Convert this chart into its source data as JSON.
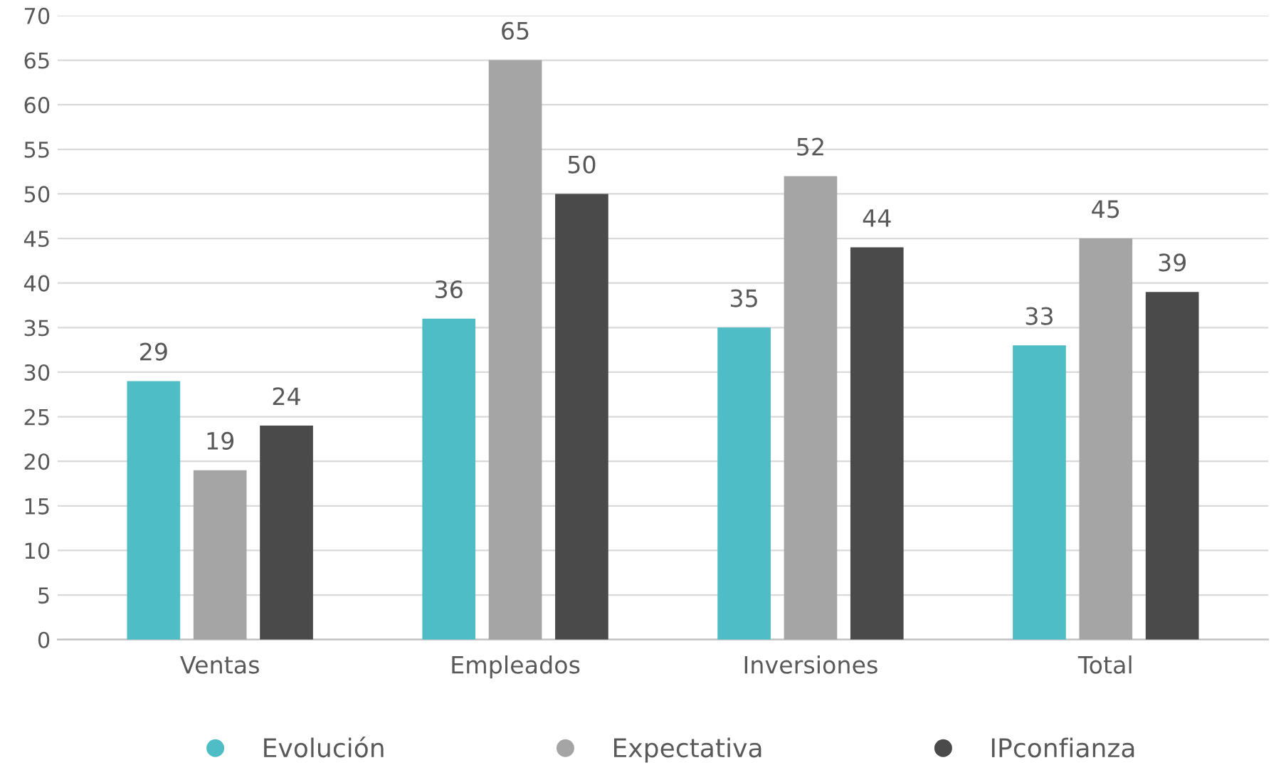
{
  "chart_data": {
    "type": "bar",
    "categories": [
      "Ventas",
      "Empleados",
      "Inversiones",
      "Total"
    ],
    "series": [
      {
        "name": "Evolución",
        "color": "#4fbdc6",
        "values": [
          29,
          36,
          35,
          33
        ]
      },
      {
        "name": "Expectativa",
        "color": "#a5a5a5",
        "values": [
          19,
          65,
          52,
          45
        ]
      },
      {
        "name": "IPconfianza",
        "color": "#4a4a4a",
        "values": [
          24,
          50,
          44,
          39
        ]
      }
    ],
    "ylim": [
      0,
      70
    ],
    "yticks": [
      0,
      5,
      10,
      15,
      20,
      25,
      30,
      35,
      40,
      45,
      50,
      55,
      60,
      65,
      70
    ],
    "grid": "y",
    "legend": "bottom",
    "data_labels": true
  }
}
